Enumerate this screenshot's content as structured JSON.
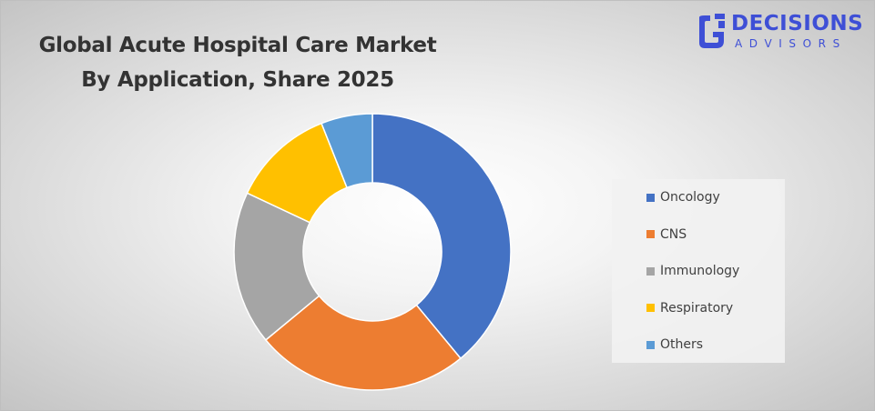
{
  "title": {
    "line1": "Global Acute Hospital Care Market",
    "line2": "By Application, Share 2025"
  },
  "logo": {
    "word1": "DECISIONS",
    "word2": "ADVISORS",
    "color": "#3e4fd6"
  },
  "chart_data": {
    "type": "pie",
    "variant": "donut",
    "title": "Global Acute Hospital Care Market By Application, Share 2025",
    "categories": [
      "Oncology",
      "CNS",
      "Immunology",
      "Respiratory",
      "Others"
    ],
    "values": [
      39,
      25,
      18,
      12,
      6
    ],
    "colors": [
      "#4472c4",
      "#ed7d31",
      "#a5a5a5",
      "#ffc000",
      "#5b9bd5"
    ],
    "data_labels": false,
    "legend_position": "right"
  }
}
